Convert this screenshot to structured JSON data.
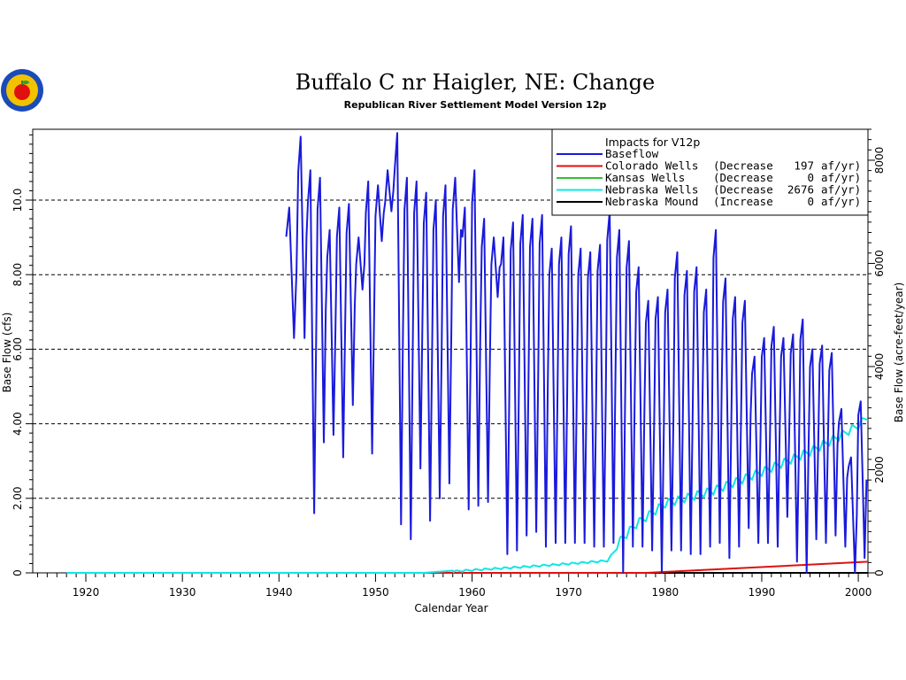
{
  "figure": {
    "title": "Buffalo  C  nr  Haigler,  NE:  Change",
    "subtitle": "Republican River Settlement Model Version 12p"
  },
  "colors": {
    "baseflow": "#1a1adc",
    "colorado": "#e01010",
    "kansas": "#30c030",
    "nebraska_wells": "#10e6e6",
    "nebraska_mound": "#000000",
    "grid": "#000000",
    "logo_ring": "#1a4bb8",
    "logo_fill": "#f2c200",
    "logo_apple": "#e01010"
  },
  "chart_data": {
    "type": "line",
    "title": "Buffalo  C  nr  Haigler,  NE:  Change",
    "subtitle": "Republican River Settlement Model Version 12p",
    "xlabel": "Calendar Year",
    "ylabel": "Base Flow (cfs)",
    "ylabel_right": "Base Flow (acre-feet/year)",
    "xlim": [
      1914.5,
      2001
    ],
    "ylim": [
      0,
      11.9
    ],
    "y2lim": [
      0,
      8600
    ],
    "x_ticks": [
      "1920",
      "1930",
      "1940",
      "1950",
      "1960",
      "1970",
      "1980",
      "1990",
      "2000"
    ],
    "y_ticks": [
      "0",
      "2.00",
      "4.00",
      "6.00",
      "8.00",
      "10.0"
    ],
    "y2_ticks": [
      "0",
      "2000",
      "4000",
      "6000",
      "8000"
    ],
    "grid": "horizontal dashed",
    "legend_position": "top-right",
    "legend_title": "Impacts  for  V12p",
    "legend": [
      {
        "label": "Baseflow",
        "detail": "",
        "amount": "",
        "unit": ""
      },
      {
        "label": "Colorado Wells",
        "detail": "(Decrease",
        "amount": "197",
        "unit": "af/yr)"
      },
      {
        "label": "Kansas Wells",
        "detail": "(Decrease",
        "amount": "0",
        "unit": "af/yr)"
      },
      {
        "label": "Nebraska Wells",
        "detail": "(Decrease",
        "amount": "2676",
        "unit": "af/yr)"
      },
      {
        "label": "Nebraska Mound",
        "detail": "(Increase",
        "amount": "0",
        "unit": "af/yr)"
      }
    ],
    "series": [
      {
        "name": "Baseflow",
        "start": 1940.75,
        "annual": [
          {
            "year": 1940.75,
            "max": 9.8,
            "min": 6.3
          },
          {
            "year": 1942,
            "max": 11.7,
            "min": 6.3
          },
          {
            "year": 1943,
            "max": 10.8,
            "min": 1.6
          },
          {
            "year": 1944,
            "max": 10.6,
            "min": 3.5
          },
          {
            "year": 1945,
            "max": 9.2,
            "min": 3.7
          },
          {
            "year": 1946,
            "max": 9.8,
            "min": 3.1
          },
          {
            "year": 1947,
            "max": 9.9,
            "min": 4.5
          },
          {
            "year": 1948,
            "max": 9.0,
            "min": 7.6
          },
          {
            "year": 1949,
            "max": 10.5,
            "min": 3.2
          },
          {
            "year": 1950,
            "max": 10.4,
            "min": 8.9
          },
          {
            "year": 1951,
            "max": 10.8,
            "min": 9.7
          },
          {
            "year": 1952,
            "max": 11.8,
            "min": 1.3
          },
          {
            "year": 1953,
            "max": 10.6,
            "min": 0.9
          },
          {
            "year": 1954,
            "max": 10.5,
            "min": 2.8
          },
          {
            "year": 1955,
            "max": 10.2,
            "min": 1.4
          },
          {
            "year": 1956,
            "max": 10.0,
            "min": 2.0
          },
          {
            "year": 1957,
            "max": 10.4,
            "min": 2.4
          },
          {
            "year": 1958,
            "max": 10.6,
            "min": 7.8
          },
          {
            "year": 1959,
            "max": 9.8,
            "min": 1.7
          },
          {
            "year": 1960,
            "max": 10.8,
            "min": 1.8
          },
          {
            "year": 1961,
            "max": 9.5,
            "min": 1.9
          },
          {
            "year": 1962,
            "max": 9.0,
            "min": 7.4
          },
          {
            "year": 1963,
            "max": 9.0,
            "min": 0.5
          },
          {
            "year": 1964,
            "max": 9.4,
            "min": 0.6
          },
          {
            "year": 1965,
            "max": 9.6,
            "min": 1.0
          },
          {
            "year": 1966,
            "max": 9.5,
            "min": 1.1
          },
          {
            "year": 1967,
            "max": 9.6,
            "min": 0.7
          },
          {
            "year": 1968,
            "max": 8.7,
            "min": 0.8
          },
          {
            "year": 1969,
            "max": 9.0,
            "min": 0.8
          },
          {
            "year": 1970,
            "max": 9.3,
            "min": 0.8
          },
          {
            "year": 1971,
            "max": 8.7,
            "min": 0.8
          },
          {
            "year": 1972,
            "max": 8.6,
            "min": 0.7
          },
          {
            "year": 1973,
            "max": 8.8,
            "min": 0.7
          },
          {
            "year": 1974,
            "max": 9.7,
            "min": 0.8
          },
          {
            "year": 1975,
            "max": 9.2,
            "min": 0.0
          },
          {
            "year": 1976,
            "max": 8.9,
            "min": 0.7
          },
          {
            "year": 1977,
            "max": 8.2,
            "min": 0.7
          },
          {
            "year": 1978,
            "max": 7.3,
            "min": 0.6
          },
          {
            "year": 1979,
            "max": 7.4,
            "min": 0.0
          },
          {
            "year": 1980,
            "max": 7.6,
            "min": 0.6
          },
          {
            "year": 1981,
            "max": 8.6,
            "min": 0.6
          },
          {
            "year": 1982,
            "max": 8.1,
            "min": 0.5
          },
          {
            "year": 1983,
            "max": 8.2,
            "min": 0.5
          },
          {
            "year": 1984,
            "max": 7.6,
            "min": 0.7
          },
          {
            "year": 1985,
            "max": 9.2,
            "min": 0.8
          },
          {
            "year": 1986,
            "max": 7.9,
            "min": 0.4
          },
          {
            "year": 1987,
            "max": 7.4,
            "min": 0.7
          },
          {
            "year": 1988,
            "max": 7.3,
            "min": 1.2
          },
          {
            "year": 1989,
            "max": 5.8,
            "min": 0.8
          },
          {
            "year": 1990,
            "max": 6.3,
            "min": 0.8
          },
          {
            "year": 1991,
            "max": 6.6,
            "min": 0.7
          },
          {
            "year": 1992,
            "max": 6.3,
            "min": 1.5
          },
          {
            "year": 1993,
            "max": 6.4,
            "min": 0.3
          },
          {
            "year": 1994,
            "max": 6.8,
            "min": 0.0
          },
          {
            "year": 1995,
            "max": 6.0,
            "min": 0.9
          },
          {
            "year": 1996,
            "max": 6.1,
            "min": 0.8
          },
          {
            "year": 1997,
            "max": 5.9,
            "min": 1.0
          },
          {
            "year": 1998,
            "max": 4.4,
            "min": 0.7
          },
          {
            "year": 1999,
            "max": 3.1,
            "min": 0.0
          },
          {
            "year": 2000,
            "max": 4.6,
            "min": 0.4
          }
        ]
      },
      {
        "name": "Colorado Wells",
        "points": [
          {
            "x": 1918,
            "y": 0
          },
          {
            "x": 1978,
            "y": 0
          },
          {
            "x": 2001,
            "y": 0.3
          }
        ]
      },
      {
        "name": "Kansas Wells",
        "points": [
          {
            "x": 1918,
            "y": 0
          },
          {
            "x": 2001,
            "y": 0
          }
        ]
      },
      {
        "name": "Nebraska Wells",
        "points": [
          {
            "x": 1918,
            "y": 0
          },
          {
            "x": 1955,
            "y": 0
          },
          {
            "x": 1960,
            "y": 0.1
          },
          {
            "x": 1965,
            "y": 0.18
          },
          {
            "x": 1970,
            "y": 0.27
          },
          {
            "x": 1974,
            "y": 0.35
          },
          {
            "x": 1975.5,
            "y": 0.85
          },
          {
            "x": 1977,
            "y": 1.25
          },
          {
            "x": 1980,
            "y": 1.8
          },
          {
            "x": 1985,
            "y": 2.15
          },
          {
            "x": 1990,
            "y": 2.65
          },
          {
            "x": 1995,
            "y": 3.2
          },
          {
            "x": 1998,
            "y": 3.6
          },
          {
            "x": 2000,
            "y": 3.9
          },
          {
            "x": 2001,
            "y": 4.15
          }
        ]
      },
      {
        "name": "Nebraska Mound",
        "points": [
          {
            "x": 1918,
            "y": 0
          },
          {
            "x": 2001,
            "y": 0
          }
        ]
      }
    ]
  }
}
